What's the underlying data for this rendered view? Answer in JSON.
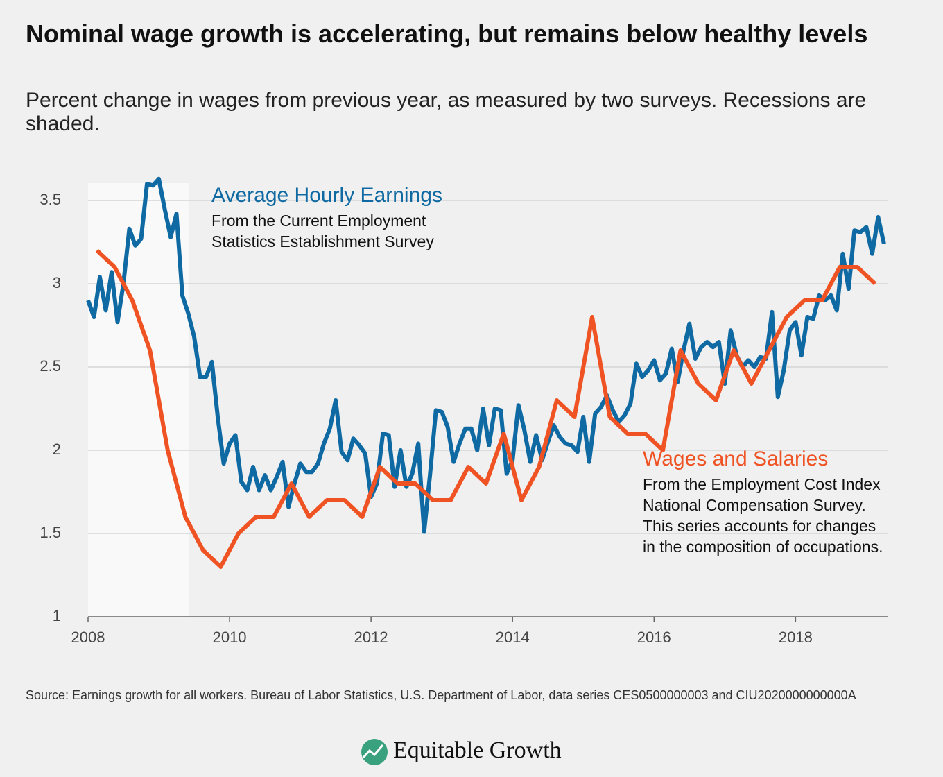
{
  "chart_data": {
    "type": "line",
    "title": "Nominal wage growth is accelerating, but remains below healthy levels",
    "subtitle": "Percent change in wages from previous year, as measured by two surveys. Recessions are shaded.",
    "source": "Source: Earnings growth for all workers. Bureau of Labor Statistics, U.S. Department of Labor, data series CES0500000003 and CIU2020000000000A",
    "brand": "Equitable Growth",
    "xlim": [
      2008,
      2019.3
    ],
    "xticks": [
      2008,
      2010,
      2012,
      2014,
      2016,
      2018
    ],
    "ylim": [
      1,
      3.65
    ],
    "yticks": [
      1,
      1.5,
      2,
      2.5,
      3,
      3.5
    ],
    "grid": true,
    "shaded": [
      {
        "start": 2008,
        "end": 2009.42,
        "color": "#f9f9f9"
      }
    ],
    "series": [
      {
        "name": "Average Hourly Earnings",
        "color": "#0f6aa3",
        "description": [
          "From the Current Employment",
          "Statistics Establishment Survey"
        ],
        "x": [
          2008,
          2008.083,
          2008.167,
          2008.25,
          2008.333,
          2008.417,
          2008.5,
          2008.583,
          2008.667,
          2008.75,
          2008.833,
          2008.917,
          2009,
          2009.083,
          2009.167,
          2009.25,
          2009.333,
          2009.417,
          2009.5,
          2009.583,
          2009.667,
          2009.75,
          2009.833,
          2009.917,
          2010,
          2010.083,
          2010.167,
          2010.25,
          2010.333,
          2010.417,
          2010.5,
          2010.583,
          2010.667,
          2010.75,
          2010.833,
          2010.917,
          2011,
          2011.083,
          2011.167,
          2011.25,
          2011.333,
          2011.417,
          2011.5,
          2011.583,
          2011.667,
          2011.75,
          2011.833,
          2011.917,
          2012,
          2012.083,
          2012.167,
          2012.25,
          2012.333,
          2012.417,
          2012.5,
          2012.583,
          2012.667,
          2012.75,
          2012.833,
          2012.917,
          2013,
          2013.083,
          2013.167,
          2013.25,
          2013.333,
          2013.417,
          2013.5,
          2013.583,
          2013.667,
          2013.75,
          2013.833,
          2013.917,
          2014,
          2014.083,
          2014.167,
          2014.25,
          2014.333,
          2014.417,
          2014.5,
          2014.583,
          2014.667,
          2014.75,
          2014.833,
          2014.917,
          2015,
          2015.083,
          2015.167,
          2015.25,
          2015.333,
          2015.417,
          2015.5,
          2015.583,
          2015.667,
          2015.75,
          2015.833,
          2015.917,
          2016,
          2016.083,
          2016.167,
          2016.25,
          2016.333,
          2016.417,
          2016.5,
          2016.583,
          2016.667,
          2016.75,
          2016.833,
          2016.917,
          2017,
          2017.083,
          2017.167,
          2017.25,
          2017.333,
          2017.417,
          2017.5,
          2017.583,
          2017.667,
          2017.75,
          2017.833,
          2017.917,
          2018,
          2018.083,
          2018.167,
          2018.25,
          2018.333,
          2018.417,
          2018.5,
          2018.583,
          2018.667,
          2018.75,
          2018.833,
          2018.917,
          2019,
          2019.083,
          2019.167,
          2019.25
        ],
        "values": [
          2.9,
          2.8,
          3.04,
          2.84,
          3.07,
          2.77,
          3.0,
          3.33,
          3.23,
          3.27,
          3.6,
          3.59,
          3.63,
          3.45,
          3.28,
          3.42,
          2.93,
          2.82,
          2.68,
          2.44,
          2.44,
          2.53,
          2.2,
          1.92,
          2.04,
          2.09,
          1.81,
          1.76,
          1.9,
          1.76,
          1.85,
          1.76,
          1.84,
          1.93,
          1.66,
          1.8,
          1.92,
          1.87,
          1.87,
          1.92,
          2.04,
          2.13,
          2.3,
          1.99,
          1.94,
          2.07,
          2.03,
          1.98,
          1.72,
          1.8,
          2.1,
          2.09,
          1.78,
          2.0,
          1.78,
          1.86,
          2.04,
          1.51,
          1.85,
          2.24,
          2.23,
          2.14,
          1.93,
          2.04,
          2.13,
          2.13,
          2.0,
          2.25,
          2.03,
          2.25,
          2.24,
          1.86,
          1.94,
          2.27,
          2.12,
          1.93,
          2.09,
          1.94,
          2.05,
          2.15,
          2.08,
          2.04,
          2.03,
          1.99,
          2.2,
          1.93,
          2.22,
          2.26,
          2.33,
          2.24,
          2.17,
          2.21,
          2.28,
          2.52,
          2.44,
          2.48,
          2.54,
          2.42,
          2.46,
          2.61,
          2.41,
          2.6,
          2.76,
          2.55,
          2.62,
          2.65,
          2.62,
          2.65,
          2.4,
          2.72,
          2.57,
          2.5,
          2.54,
          2.5,
          2.56,
          2.55,
          2.83,
          2.32,
          2.48,
          2.72,
          2.77,
          2.57,
          2.8,
          2.79,
          2.93,
          2.9,
          2.93,
          2.84,
          3.18,
          2.97,
          3.32,
          3.31,
          3.34,
          3.18,
          3.4,
          3.24
        ]
      },
      {
        "name": "Wages and Salaries",
        "color": "#f05323",
        "description": [
          "From the Employment Cost Index",
          "National Compensation Survey.",
          "This series accounts for changes",
          "in the composition of occupations."
        ],
        "x": [
          2008.125,
          2008.375,
          2008.625,
          2008.875,
          2009.125,
          2009.375,
          2009.625,
          2009.875,
          2010.125,
          2010.375,
          2010.625,
          2010.875,
          2011.125,
          2011.375,
          2011.625,
          2011.875,
          2012.125,
          2012.375,
          2012.625,
          2012.875,
          2013.125,
          2013.375,
          2013.625,
          2013.875,
          2014.125,
          2014.375,
          2014.625,
          2014.875,
          2015.125,
          2015.375,
          2015.625,
          2015.875,
          2016.125,
          2016.375,
          2016.625,
          2016.875,
          2017.125,
          2017.375,
          2017.625,
          2017.875,
          2018.125,
          2018.375,
          2018.625,
          2018.875,
          2019.125
        ],
        "values": [
          3.2,
          3.1,
          2.9,
          2.6,
          2.0,
          1.6,
          1.4,
          1.3,
          1.5,
          1.6,
          1.6,
          1.8,
          1.6,
          1.7,
          1.7,
          1.6,
          1.9,
          1.8,
          1.8,
          1.7,
          1.7,
          1.9,
          1.8,
          2.1,
          1.7,
          1.9,
          2.3,
          2.2,
          2.8,
          2.2,
          2.1,
          2.1,
          2.0,
          2.6,
          2.4,
          2.3,
          2.6,
          2.4,
          2.6,
          2.8,
          2.9,
          2.9,
          3.1,
          3.1,
          3.0
        ]
      }
    ]
  }
}
